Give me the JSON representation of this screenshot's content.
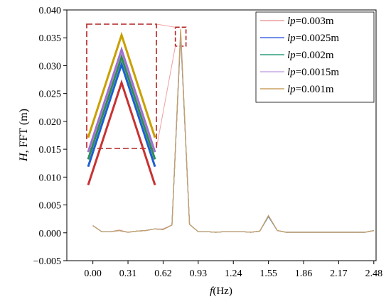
{
  "chart_data": {
    "type": "line",
    "xlabel": "f(Hz)",
    "ylabel": "H, FFT (m)",
    "x_ticks": [
      "0.00",
      "0.31",
      "0.62",
      "0.93",
      "1.24",
      "1.55",
      "1.86",
      "2.17",
      "2.48"
    ],
    "x_tick_values": [
      0.0,
      0.31,
      0.62,
      0.93,
      1.24,
      1.55,
      1.86,
      2.17,
      2.48
    ],
    "xlim": [
      -0.23,
      2.5
    ],
    "y_ticks": [
      "0.040",
      "0.035",
      "0.030",
      "0.025",
      "0.020",
      "0.015",
      "0.010",
      "0.005",
      "0.000",
      "−0.005"
    ],
    "y_tick_values": [
      0.04,
      0.035,
      0.03,
      0.025,
      0.02,
      0.015,
      0.01,
      0.005,
      0.0,
      -0.005
    ],
    "ylim": [
      -0.005,
      0.04
    ],
    "grid": false,
    "legend_position": "top-right",
    "x": [
      0.0,
      0.078,
      0.155,
      0.233,
      0.31,
      0.388,
      0.465,
      0.543,
      0.62,
      0.698,
      0.775,
      0.853,
      0.93,
      1.008,
      1.085,
      1.163,
      1.24,
      1.318,
      1.395,
      1.473,
      1.55,
      1.628,
      1.705,
      1.783,
      1.86,
      1.938,
      2.015,
      2.093,
      2.17,
      2.248,
      2.325,
      2.403,
      2.48
    ],
    "series": [
      {
        "name": "lp=0.003m",
        "label_var": "lp",
        "label_rest": "=0.003m",
        "color": "#e8a0a0",
        "values": [
          0.0013,
          0.0002,
          0.0002,
          0.0005,
          0.0001,
          0.0003,
          0.0004,
          0.0007,
          0.0007,
          0.0014,
          0.0353,
          0.0015,
          0.0002,
          0.0002,
          0.0001,
          0.0002,
          0.0002,
          0.0002,
          0.0001,
          0.0003,
          0.003,
          0.0004,
          0.0001,
          0.0001,
          0.0001,
          0.0001,
          0.0001,
          0.0001,
          0.0001,
          0.0001,
          0.0001,
          0.0001,
          0.0004
        ]
      },
      {
        "name": "lp=0.0025m",
        "label_var": "lp",
        "label_rest": "=0.0025m",
        "color": "#4169e1",
        "values": [
          0.0013,
          0.0002,
          0.0002,
          0.0004,
          0.0001,
          0.0003,
          0.0004,
          0.0007,
          0.0006,
          0.0014,
          0.0358,
          0.0015,
          0.0002,
          0.0002,
          0.0001,
          0.0002,
          0.0002,
          0.0002,
          0.0001,
          0.0003,
          0.0029,
          0.0004,
          0.0001,
          0.0001,
          0.0001,
          0.0001,
          0.0001,
          0.0001,
          0.0001,
          0.0001,
          0.0001,
          0.0001,
          0.0004
        ]
      },
      {
        "name": "lp=0.002m",
        "label_var": "lp",
        "label_rest": "=0.002m",
        "color": "#2e9e7e",
        "values": [
          0.0013,
          0.0002,
          0.0002,
          0.0004,
          0.0001,
          0.0003,
          0.0004,
          0.0007,
          0.0006,
          0.0014,
          0.036,
          0.0015,
          0.0002,
          0.0002,
          0.0001,
          0.0002,
          0.0002,
          0.0002,
          0.0001,
          0.0003,
          0.003,
          0.0004,
          0.0001,
          0.0001,
          0.0001,
          0.0001,
          0.0001,
          0.0001,
          0.0001,
          0.0001,
          0.0001,
          0.0001,
          0.0004
        ]
      },
      {
        "name": "lp=0.0015m",
        "label_var": "lp",
        "label_rest": "=0.0015m",
        "color": "#c8a8e8",
        "values": [
          0.0013,
          0.0002,
          0.0002,
          0.0004,
          0.0001,
          0.0003,
          0.0004,
          0.0007,
          0.0006,
          0.0014,
          0.0362,
          0.0015,
          0.0002,
          0.0002,
          0.0001,
          0.0002,
          0.0002,
          0.0002,
          0.0001,
          0.0003,
          0.0031,
          0.0004,
          0.0001,
          0.0001,
          0.0001,
          0.0001,
          0.0001,
          0.0001,
          0.0001,
          0.0001,
          0.0001,
          0.0001,
          0.0004
        ]
      },
      {
        "name": "lp=0.001m",
        "label_var": "lp",
        "label_rest": "=0.001m",
        "color": "#c8a060",
        "values": [
          0.0013,
          0.0002,
          0.0002,
          0.0004,
          0.0001,
          0.0003,
          0.0004,
          0.0007,
          0.0006,
          0.0014,
          0.0366,
          0.0015,
          0.0002,
          0.0002,
          0.0001,
          0.0002,
          0.0002,
          0.0002,
          0.0001,
          0.0003,
          0.0031,
          0.0004,
          0.0001,
          0.0001,
          0.0001,
          0.0001,
          0.0001,
          0.0001,
          0.0001,
          0.0001,
          0.0001,
          0.0001,
          0.0004
        ]
      }
    ],
    "inset": {
      "type": "line",
      "zoom_x": [
        0.728,
        0.822
      ],
      "zoom_ylim": [
        0.0335,
        0.0369
      ],
      "box_color": "#b22222",
      "line_colors": [
        "#c8a000",
        "#a070d0",
        "#2e8b57",
        "#1e5fd0",
        "#c83232"
      ],
      "series_peaks": [
        0.0366,
        0.0362,
        0.036,
        0.0358,
        0.0353
      ]
    }
  }
}
